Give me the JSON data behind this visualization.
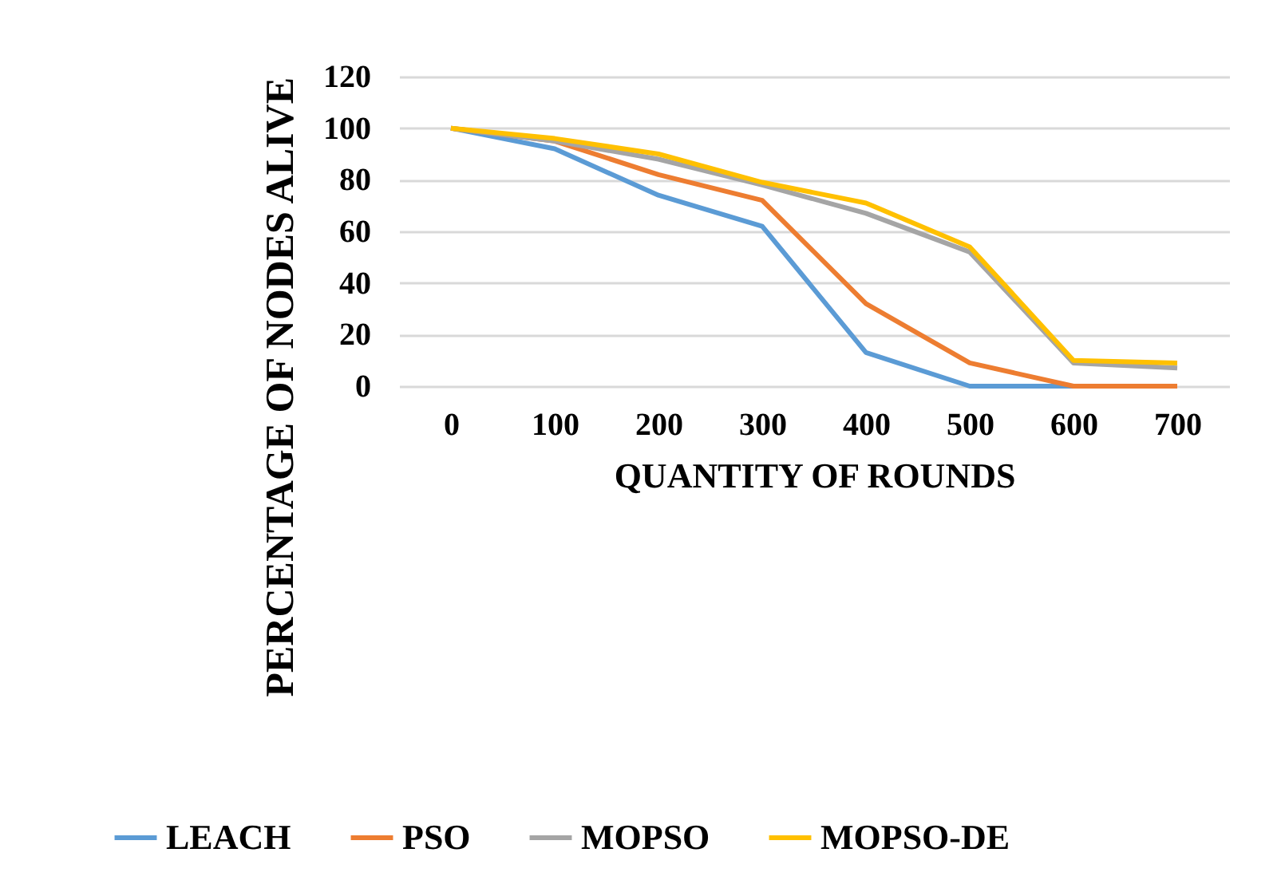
{
  "chart_data": {
    "type": "line",
    "xlabel": "QUANTITY OF ROUNDS",
    "ylabel": "PERCENTAGE OF NODES ALIVE",
    "categories": [
      "0",
      "100",
      "200",
      "300",
      "400",
      "500",
      "600",
      "700"
    ],
    "series": [
      {
        "name": "LEACH",
        "color": "#5b9bd5",
        "values": [
          100,
          92,
          74,
          62,
          13,
          0,
          0,
          0
        ]
      },
      {
        "name": "PSO",
        "color": "#ed7d31",
        "values": [
          100,
          95,
          82,
          72,
          32,
          9,
          0,
          0
        ]
      },
      {
        "name": "MOPSO",
        "color": "#a5a5a5",
        "values": [
          100,
          95,
          88,
          78,
          67,
          52,
          9,
          7
        ]
      },
      {
        "name": "MOPSO-DE",
        "color": "#ffc000",
        "values": [
          100,
          96,
          90,
          79,
          71,
          54,
          10,
          9
        ]
      }
    ],
    "ylim": [
      0,
      120
    ],
    "yticks": [
      0,
      20,
      40,
      60,
      80,
      100,
      120
    ],
    "grid": "y",
    "legend": "bottom",
    "marker": "none",
    "line_style": "solid"
  }
}
